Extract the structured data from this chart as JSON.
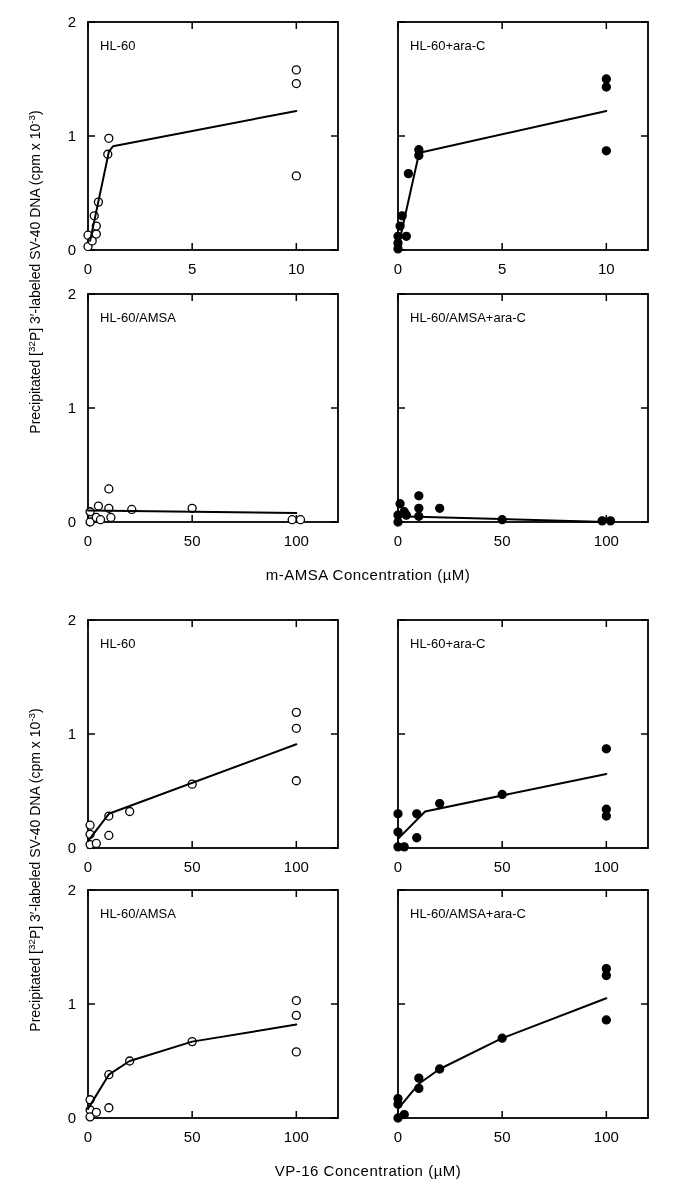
{
  "chart_data": [
    {
      "type": "scatter",
      "title": "HL-60",
      "ylabel": "Precipitated [$^{32}$P] 3′-labeled SV-40 DNA (cpm x 10$^{-3}$)",
      "xlim": [
        0,
        12
      ],
      "xticks": [
        0,
        5,
        10
      ],
      "ylim": [
        0,
        2
      ],
      "yticks": [
        0,
        1,
        2
      ],
      "marker": "circle",
      "series": [
        {
          "color": "#ffffff",
          "x": [
            0,
            0,
            0.2,
            0.3,
            0.4,
            0.4,
            0.5,
            0.95,
            1,
            10,
            10,
            10
          ],
          "values": [
            0.03,
            0.13,
            0.08,
            0.3,
            0.14,
            0.21,
            0.42,
            0.84,
            0.98,
            1.58,
            1.46,
            0.65
          ]
        },
        {
          "type": "line",
          "marker": "none",
          "color": "#000000",
          "x": [
            0.1,
            1,
            1.2,
            10
          ],
          "values": [
            0.08,
            0.86,
            0.91,
            1.22
          ]
        }
      ]
    },
    {
      "type": "scatter",
      "title": "HL-60+ara-C",
      "xlim": [
        0,
        12
      ],
      "xticks": [
        0,
        5,
        10
      ],
      "ylim": [
        0,
        2
      ],
      "yticks": [
        0,
        1,
        2
      ],
      "tick_labels": "x",
      "marker": "circle",
      "series": [
        {
          "color": "#000000",
          "x": [
            0,
            0,
            0,
            0.1,
            0.2,
            0.4,
            0.5,
            1,
            1,
            10,
            10,
            10
          ],
          "values": [
            0.01,
            0.06,
            0.12,
            0.21,
            0.3,
            0.12,
            0.67,
            0.88,
            0.83,
            1.5,
            1.43,
            0.87
          ]
        },
        {
          "type": "line",
          "marker": "none",
          "color": "#000000",
          "x": [
            0,
            1,
            1.2,
            10
          ],
          "values": [
            0.02,
            0.84,
            0.86,
            1.22
          ]
        }
      ]
    },
    {
      "type": "scatter",
      "title": "HL-60/AMSA",
      "xlabel": "m-AMSA Concentration (µM)",
      "xlim": [
        0,
        120
      ],
      "xticks": [
        0,
        50,
        100
      ],
      "ylim": [
        0,
        2
      ],
      "yticks": [
        0,
        1,
        2
      ],
      "marker": "circle",
      "series": [
        {
          "color": "#ffffff",
          "x": [
            1,
            1,
            4,
            5,
            6,
            10,
            10,
            11,
            21,
            50,
            98,
            102
          ],
          "values": [
            0,
            0.09,
            0.04,
            0.14,
            0.02,
            0.12,
            0.29,
            0.04,
            0.11,
            0.12,
            0.02,
            0.02
          ]
        },
        {
          "type": "line",
          "marker": "none",
          "color": "#000000",
          "x": [
            0,
            100
          ],
          "values": [
            0.1,
            0.08
          ]
        }
      ]
    },
    {
      "type": "scatter",
      "title": "HL-60/AMSA+ara-C",
      "xlim": [
        0,
        120
      ],
      "xticks": [
        0,
        50,
        100
      ],
      "ylim": [
        0,
        2
      ],
      "yticks": [
        0,
        1,
        2
      ],
      "tick_labels": "x",
      "marker": "circle",
      "series": [
        {
          "color": "#000000",
          "x": [
            0,
            0,
            1,
            3,
            4,
            10,
            10,
            10,
            20,
            50,
            98,
            102
          ],
          "values": [
            0,
            0.06,
            0.16,
            0.09,
            0.06,
            0.23,
            0.12,
            0.05,
            0.12,
            0.02,
            0.01,
            0.01
          ]
        },
        {
          "type": "line",
          "marker": "none",
          "color": "#000000",
          "x": [
            0,
            100
          ],
          "values": [
            0.05,
            0
          ]
        }
      ]
    },
    {
      "type": "scatter",
      "title": "HL-60",
      "ylabel": "Precipitated [$^{32}$P] 3′-labeled SV-40 DNA (cpm x 10$^{-3}$)",
      "xlim": [
        0,
        120
      ],
      "xticks": [
        0,
        50,
        100
      ],
      "ylim": [
        0,
        2
      ],
      "yticks": [
        0,
        1,
        2
      ],
      "marker": "circle",
      "series": [
        {
          "color": "#ffffff",
          "x": [
            1,
            1,
            1,
            4,
            10,
            10,
            20,
            50,
            100,
            100,
            100
          ],
          "values": [
            0.2,
            0.12,
            0.03,
            0.04,
            0.28,
            0.11,
            0.32,
            0.56,
            1.19,
            1.05,
            0.59
          ]
        },
        {
          "type": "line",
          "marker": "none",
          "color": "#000000",
          "x": [
            0,
            10,
            100
          ],
          "values": [
            0.06,
            0.3,
            0.91
          ]
        }
      ]
    },
    {
      "type": "scatter",
      "title": "HL-60+ara-C",
      "xlim": [
        0,
        120
      ],
      "xticks": [
        0,
        50,
        100
      ],
      "ylim": [
        0,
        2
      ],
      "yticks": [
        0,
        1,
        2
      ],
      "tick_labels": "x",
      "marker": "circle",
      "series": [
        {
          "color": "#000000",
          "x": [
            0,
            0,
            0,
            3,
            9,
            9,
            20,
            50,
            100,
            100,
            100
          ],
          "values": [
            0.3,
            0.14,
            0.01,
            0.01,
            0.3,
            0.09,
            0.39,
            0.47,
            0.87,
            0.34,
            0.28
          ]
        },
        {
          "type": "line",
          "marker": "none",
          "color": "#000000",
          "x": [
            0,
            13,
            100
          ],
          "values": [
            0.08,
            0.32,
            0.65
          ]
        }
      ]
    },
    {
      "type": "scatter",
      "title": "HL-60/AMSA",
      "xlabel": "VP-16 Concentration (µM)",
      "xlim": [
        0,
        120
      ],
      "xticks": [
        0,
        50,
        100
      ],
      "ylim": [
        0,
        2
      ],
      "yticks": [
        0,
        1,
        2
      ],
      "marker": "circle",
      "series": [
        {
          "color": "#ffffff",
          "x": [
            1,
            1,
            1,
            4,
            10,
            10,
            20,
            50,
            100,
            100,
            100
          ],
          "values": [
            0.16,
            0.07,
            0.01,
            0.05,
            0.38,
            0.09,
            0.5,
            0.67,
            1.03,
            0.9,
            0.58
          ]
        },
        {
          "type": "line",
          "marker": "none",
          "color": "#000000",
          "x": [
            0,
            10,
            20,
            50,
            100
          ],
          "values": [
            0.08,
            0.38,
            0.5,
            0.67,
            0.82
          ]
        }
      ]
    },
    {
      "type": "scatter",
      "title": "HL-60/AMSA+ara-C",
      "xlim": [
        0,
        120
      ],
      "xticks": [
        0,
        50,
        100
      ],
      "ylim": [
        0,
        2
      ],
      "yticks": [
        0,
        1,
        2
      ],
      "tick_labels": "x",
      "marker": "circle",
      "series": [
        {
          "color": "#000000",
          "x": [
            0,
            0,
            0,
            3,
            10,
            10,
            20,
            50,
            100,
            100,
            100
          ],
          "values": [
            0.17,
            0.12,
            0,
            0.03,
            0.35,
            0.26,
            0.43,
            0.7,
            1.31,
            1.25,
            0.86
          ]
        },
        {
          "type": "line",
          "marker": "none",
          "color": "#000000",
          "x": [
            0,
            10,
            20,
            50,
            100
          ],
          "values": [
            0.08,
            0.3,
            0.43,
            0.7,
            1.05
          ]
        }
      ]
    }
  ]
}
